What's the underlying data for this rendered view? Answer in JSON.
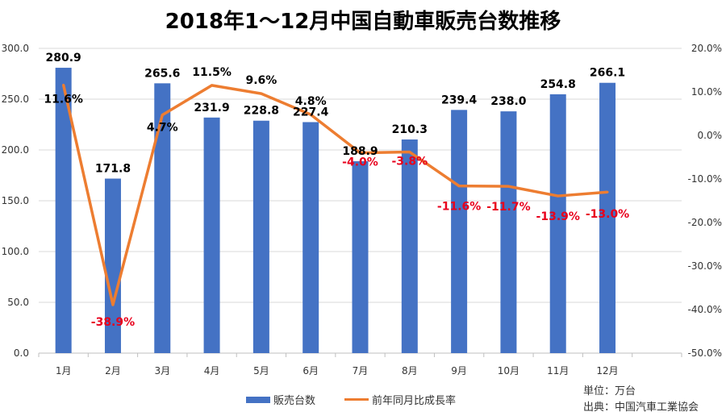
{
  "chart_data": {
    "type": "bar+line",
    "title": "2018年1～12月中国自動車販売台数推移",
    "categories": [
      "1月",
      "2月",
      "3月",
      "4月",
      "5月",
      "6月",
      "7月",
      "8月",
      "9月",
      "10月",
      "11月",
      "12月"
    ],
    "series": [
      {
        "name": "販売台数",
        "type": "bar",
        "axis": "left",
        "color": "#4472c4",
        "values": [
          280.9,
          171.8,
          265.6,
          231.9,
          228.8,
          227.4,
          188.9,
          210.3,
          239.4,
          238.0,
          254.8,
          266.1
        ]
      },
      {
        "name": "前年同月比成長率",
        "type": "line",
        "axis": "right",
        "color": "#ed7d31",
        "values": [
          11.6,
          -38.9,
          4.7,
          11.5,
          9.6,
          4.8,
          -4.0,
          -3.8,
          -11.6,
          -11.7,
          -13.9,
          -13.0
        ]
      }
    ],
    "left_axis": {
      "range": [
        0,
        300
      ],
      "ticks": [
        "0.0",
        "50.0",
        "100.0",
        "150.0",
        "200.0",
        "250.0",
        "300.0"
      ]
    },
    "right_axis": {
      "range": [
        -50,
        20
      ],
      "ticks": [
        "-50.0%",
        "-40.0%",
        "-30.0%",
        "-20.0%",
        "-10.0%",
        "0.0%",
        "10.0%",
        "20.0%"
      ]
    },
    "grid": true,
    "legend_position": "bottom",
    "negative_label_color": "#e8001c"
  },
  "notes": {
    "unit": "単位：万台",
    "source": "出典：中国汽車工業協会"
  }
}
